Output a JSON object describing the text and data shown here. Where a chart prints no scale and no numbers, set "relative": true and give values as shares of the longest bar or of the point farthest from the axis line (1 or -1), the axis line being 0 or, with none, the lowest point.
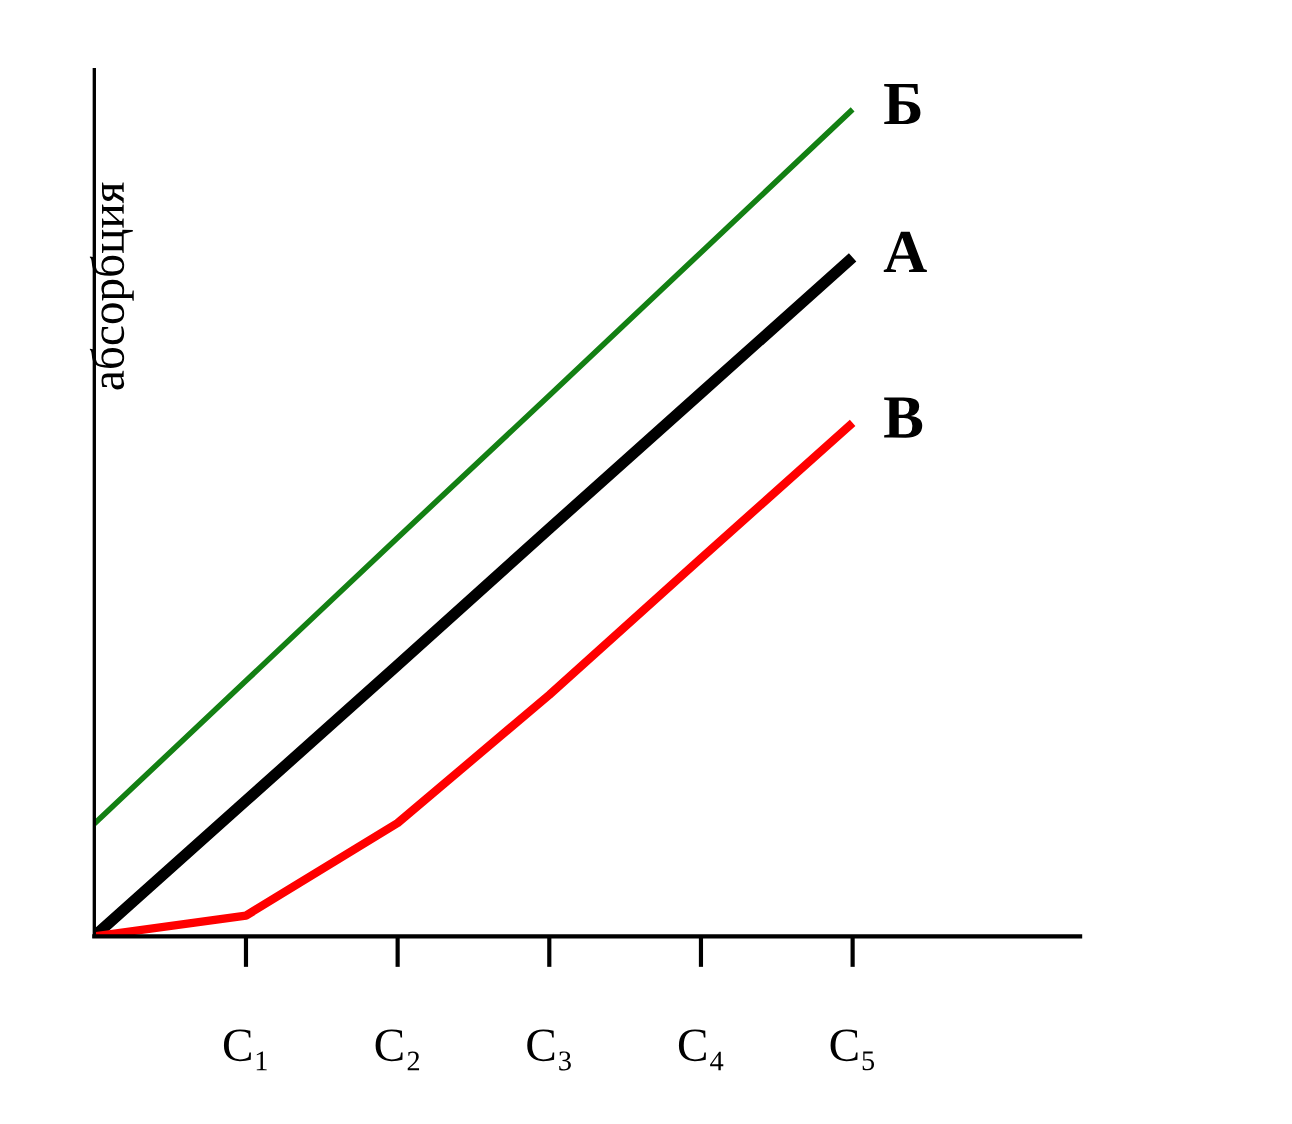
{
  "chart_data": {
    "type": "line",
    "relative": true,
    "ylabel": "абсорбция",
    "categories": [
      null,
      "C₁",
      "C₂",
      "C₃",
      "C₄",
      "C₅"
    ],
    "legend": false,
    "marker": "none",
    "line_style": "solid",
    "series": [
      {
        "name": "Б",
        "color": "#138013",
        "values": [
          0.136,
          0.309,
          0.482,
          0.654,
          0.827,
          1
        ]
      },
      {
        "name": "А",
        "color": "#000000",
        "values": [
          0,
          0.164,
          0.328,
          0.493,
          0.657,
          0.821
        ]
      },
      {
        "name": "В",
        "color": "#ff0000",
        "values": [
          0,
          0.025,
          0.137,
          0.292,
          0.457,
          0.621
        ]
      }
    ]
  }
}
